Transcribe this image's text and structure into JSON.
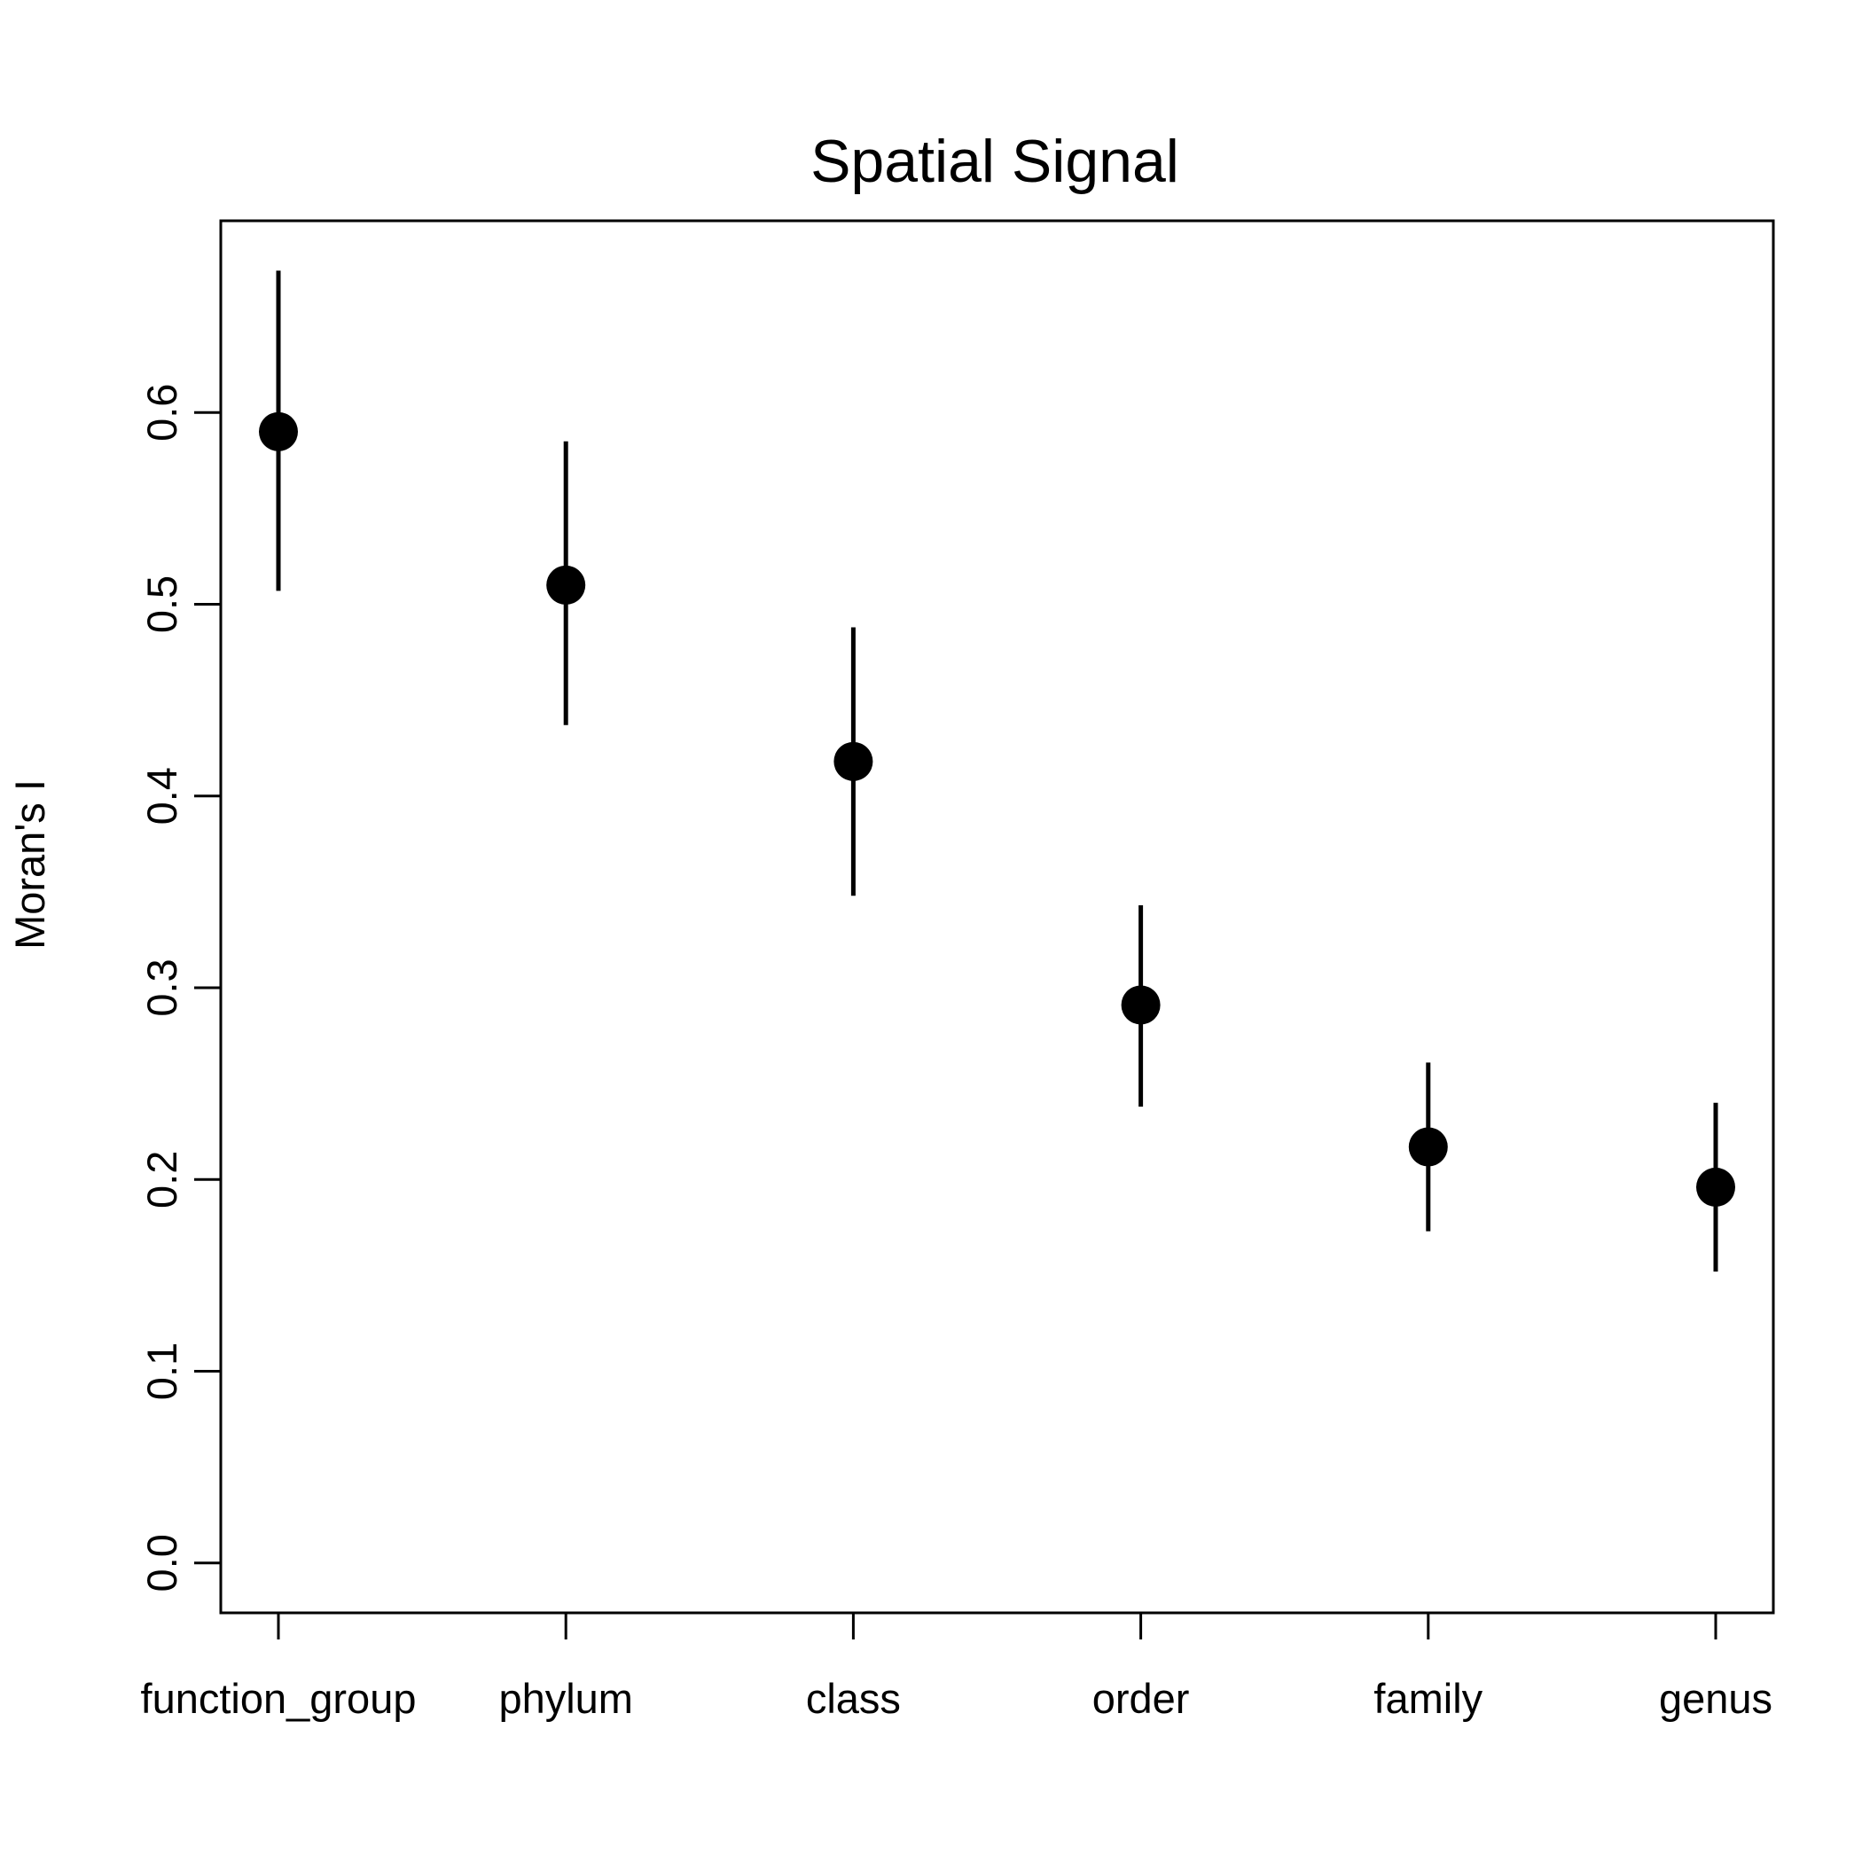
{
  "chart_data": {
    "type": "scatter",
    "title": "Spatial Signal",
    "xlabel": "",
    "ylabel": "Moran's I",
    "categories": [
      "function_group",
      "phylum",
      "class",
      "order",
      "family",
      "genus"
    ],
    "values": [
      0.59,
      0.51,
      0.418,
      0.291,
      0.217,
      0.196
    ],
    "error_lower": [
      0.507,
      0.437,
      0.348,
      0.238,
      0.173,
      0.152
    ],
    "error_upper": [
      0.674,
      0.585,
      0.488,
      0.343,
      0.261,
      0.24
    ],
    "yticks": [
      "0.0",
      "0.1",
      "0.2",
      "0.3",
      "0.4",
      "0.5",
      "0.6"
    ],
    "ylim": [
      -0.026,
      0.7
    ],
    "grid": false,
    "colors": {
      "points": "#000000",
      "error_bars": "#000000",
      "axes": "#000000"
    }
  }
}
